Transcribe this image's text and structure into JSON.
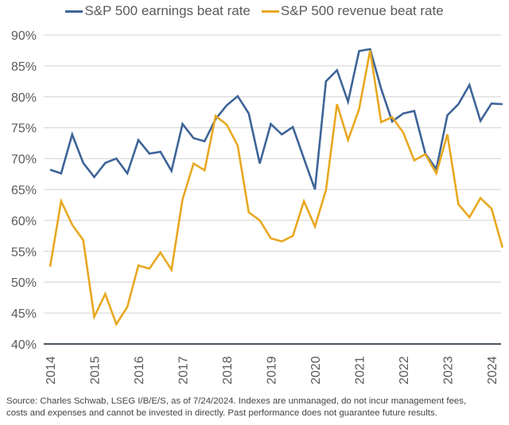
{
  "chart_data": {
    "type": "line",
    "title": "",
    "xlabel": "",
    "ylabel": "",
    "x_tick_labels": [
      "2014",
      "2015",
      "2016",
      "2017",
      "2018",
      "2019",
      "2020",
      "2021",
      "2022",
      "2023",
      "2024"
    ],
    "y_tick_labels": [
      "90%",
      "85%",
      "80%",
      "75%",
      "70%",
      "65%",
      "60%",
      "55%",
      "50%",
      "45%",
      "40%"
    ],
    "ylim": [
      40,
      90
    ],
    "xlim": [
      2014,
      2024.25
    ],
    "grid": true,
    "legend_position": "top",
    "x_start": 2014,
    "x_step": 0.25,
    "series": [
      {
        "name": "S&P 500 earnings beat rate",
        "color": "#3e6498",
        "values": [
          68.2,
          67.6,
          73.9,
          69.3,
          67.0,
          69.3,
          70.0,
          67.6,
          73.0,
          70.8,
          71.1,
          68.0,
          75.6,
          73.3,
          72.8,
          76.4,
          78.6,
          80.1,
          77.3,
          69.2,
          75.6,
          73.9,
          75.1,
          70.0,
          65.0,
          82.5,
          84.3,
          79.2,
          87.4,
          87.7,
          81.3,
          76.0,
          77.3,
          77.7,
          70.8,
          68.3,
          77.0,
          78.8,
          81.9,
          76.1,
          78.9,
          78.8
        ]
      },
      {
        "name": "S&P 500 revenue beat rate",
        "color": "#e8a820",
        "values": [
          52.5,
          63.1,
          59.3,
          56.8,
          44.4,
          48.1,
          43.2,
          46.0,
          52.7,
          52.2,
          54.8,
          52.0,
          63.4,
          69.2,
          68.1,
          76.9,
          75.5,
          72.1,
          61.3,
          60.0,
          57.1,
          56.6,
          57.5,
          63.1,
          59.0,
          64.9,
          78.8,
          73.0,
          78.0,
          87.5,
          75.9,
          76.7,
          74.2,
          69.7,
          70.7,
          67.6,
          73.9,
          62.6,
          60.5,
          63.6,
          61.9,
          55.6
        ]
      }
    ]
  },
  "footer": {
    "line1": "Source: Charles Schwab, LSEG I/B/E/S, as of 7/24/2024. Indexes are unmanaged, do not incur management fees,",
    "line2": "costs and expenses and cannot be invested in directly.  Past performance does not guarantee future results."
  }
}
